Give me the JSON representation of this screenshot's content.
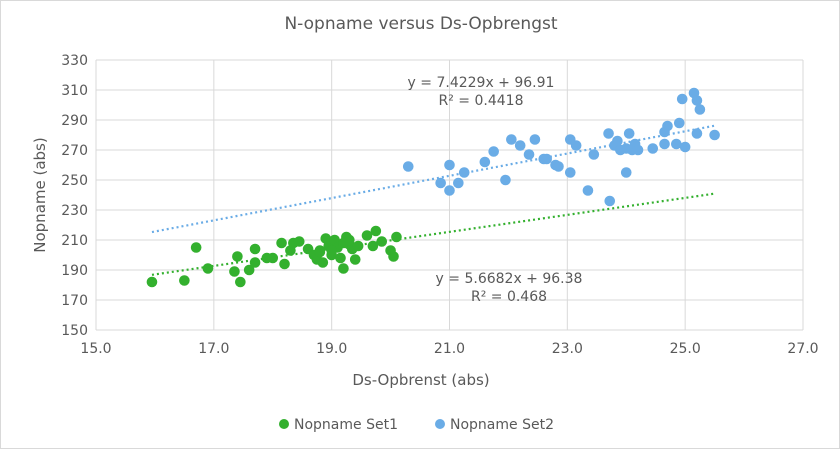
{
  "chart_data": {
    "type": "scatter",
    "title": "N-opname versus Ds-Opbrengst",
    "xlabel": "Ds-Opbrenst (abs)",
    "ylabel": "Nopname (abs)",
    "xlim": [
      15.0,
      27.0
    ],
    "ylim": [
      150,
      330
    ],
    "xticks": [
      "15.0",
      "17.0",
      "19.0",
      "21.0",
      "23.0",
      "25.0",
      "27.0"
    ],
    "yticks": [
      "150",
      "170",
      "190",
      "210",
      "230",
      "250",
      "270",
      "290",
      "310",
      "330"
    ],
    "grid": true,
    "legend_placement": "bottom",
    "series": [
      {
        "name": "Nopname Set1",
        "color": "#33b02e",
        "trend": {
          "slope": 5.6682,
          "intercept": 96.38,
          "x_range": [
            15.95,
            25.5
          ],
          "equation": "y = 5.6682x + 96.38",
          "r2": "R² = 0.468"
        },
        "points": [
          [
            15.95,
            182
          ],
          [
            16.5,
            183
          ],
          [
            16.7,
            205
          ],
          [
            16.9,
            191
          ],
          [
            17.35,
            189
          ],
          [
            17.4,
            199
          ],
          [
            17.45,
            182
          ],
          [
            17.6,
            190
          ],
          [
            17.7,
            204
          ],
          [
            17.7,
            195
          ],
          [
            17.9,
            198
          ],
          [
            18.0,
            198
          ],
          [
            18.15,
            208
          ],
          [
            18.2,
            194
          ],
          [
            18.3,
            203
          ],
          [
            18.35,
            208
          ],
          [
            18.45,
            209
          ],
          [
            18.6,
            204
          ],
          [
            18.7,
            200
          ],
          [
            18.75,
            197
          ],
          [
            18.8,
            203
          ],
          [
            18.85,
            195
          ],
          [
            18.9,
            211
          ],
          [
            18.95,
            206
          ],
          [
            19.0,
            200
          ],
          [
            19.05,
            210
          ],
          [
            19.1,
            205
          ],
          [
            19.15,
            198
          ],
          [
            19.2,
            191
          ],
          [
            19.25,
            212
          ],
          [
            19.3,
            207
          ],
          [
            19.35,
            204
          ],
          [
            19.4,
            197
          ],
          [
            19.45,
            206
          ],
          [
            19.6,
            213
          ],
          [
            19.7,
            206
          ],
          [
            19.75,
            216
          ],
          [
            19.85,
            209
          ],
          [
            20.0,
            203
          ],
          [
            20.05,
            199
          ],
          [
            20.1,
            212
          ],
          [
            18.8,
            202
          ],
          [
            19.0,
            203
          ],
          [
            19.2,
            208
          ],
          [
            19.3,
            210
          ]
        ]
      },
      {
        "name": "Nopname Set2",
        "color": "#6aace6",
        "trend": {
          "slope": 7.4229,
          "intercept": 96.91,
          "x_range": [
            15.95,
            25.5
          ],
          "equation": "y = 7.4229x + 96.91",
          "r2": "R² = 0.4418"
        },
        "points": [
          [
            20.3,
            259
          ],
          [
            20.85,
            248
          ],
          [
            21.0,
            260
          ],
          [
            21.0,
            243
          ],
          [
            21.15,
            248
          ],
          [
            21.25,
            255
          ],
          [
            21.6,
            262
          ],
          [
            21.75,
            269
          ],
          [
            21.95,
            250
          ],
          [
            22.05,
            277
          ],
          [
            22.2,
            273
          ],
          [
            22.35,
            267
          ],
          [
            22.45,
            277
          ],
          [
            22.6,
            264
          ],
          [
            22.65,
            264
          ],
          [
            22.8,
            260
          ],
          [
            22.85,
            259
          ],
          [
            23.05,
            277
          ],
          [
            23.05,
            255
          ],
          [
            23.15,
            273
          ],
          [
            23.35,
            243
          ],
          [
            23.45,
            267
          ],
          [
            23.7,
            281
          ],
          [
            23.72,
            236
          ],
          [
            23.8,
            273
          ],
          [
            23.85,
            276
          ],
          [
            23.9,
            270
          ],
          [
            24.0,
            271
          ],
          [
            24.0,
            255
          ],
          [
            24.05,
            281
          ],
          [
            24.1,
            270
          ],
          [
            24.15,
            274
          ],
          [
            24.2,
            270
          ],
          [
            24.45,
            271
          ],
          [
            24.65,
            274
          ],
          [
            24.65,
            282
          ],
          [
            24.7,
            286
          ],
          [
            24.85,
            274
          ],
          [
            24.9,
            288
          ],
          [
            24.95,
            304
          ],
          [
            25.0,
            272
          ],
          [
            25.15,
            308
          ],
          [
            25.2,
            281
          ],
          [
            25.2,
            303
          ],
          [
            25.25,
            297
          ],
          [
            25.5,
            280
          ]
        ]
      }
    ]
  }
}
